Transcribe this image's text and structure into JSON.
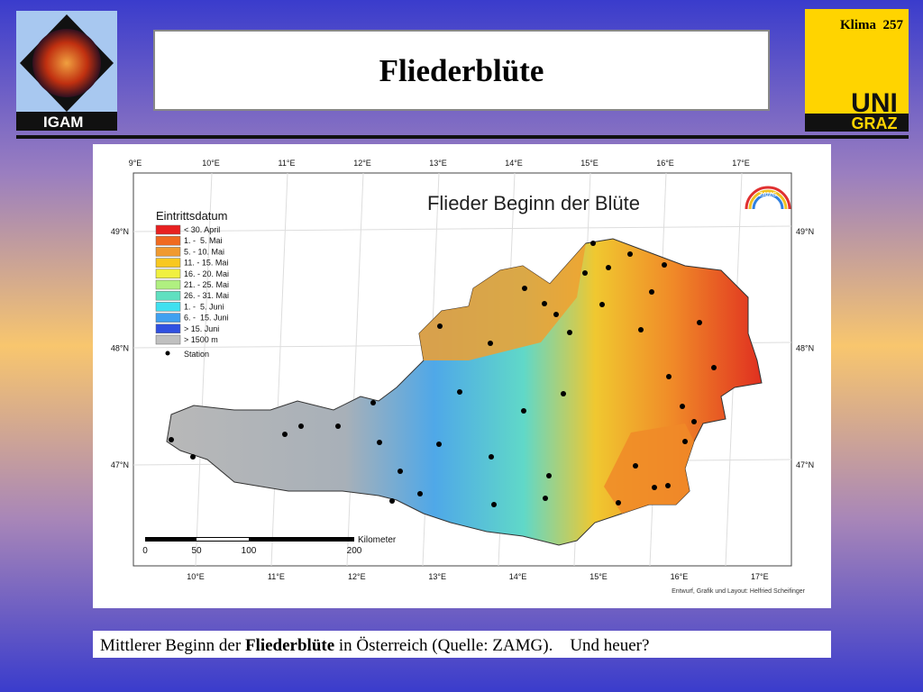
{
  "header": {
    "logo_text": "IGAM",
    "title": "Fliederblüte",
    "slide_label": "Klima  257",
    "university": [
      "UNI",
      "GRAZ"
    ]
  },
  "map": {
    "title": "Flieder Beginn der Blüte",
    "legend_title": "Eintrittsdatum",
    "legend": [
      "< 30. April",
      "1. -  5. Mai",
      "5. - 10. Mai",
      "11. - 15. Mai",
      "16. - 20. Mai",
      "21. - 25. Mai",
      "26. - 31. Mai",
      "1. -  5. Juni",
      "6. -  15. Juni",
      "> 15. Juni",
      "> 1500 m"
    ],
    "station_label": "Station",
    "lon_top": [
      "9°E",
      "10°E",
      "11°E",
      "12°E",
      "13°E",
      "14°E",
      "15°E",
      "16°E",
      "17°E"
    ],
    "lon_bottom": [
      "10°E",
      "11°E",
      "12°E",
      "13°E",
      "14°E",
      "15°E",
      "16°E",
      "17°E"
    ],
    "lat": [
      "49°N",
      "48°N",
      "47°N"
    ],
    "scale": {
      "labels": [
        "0",
        "50",
        "100",
        "200"
      ],
      "unit": "Kilometer"
    },
    "logo": "ZAMG",
    "credit": "Entwurf, Grafik und Layout: Helfried Scheifinger"
  },
  "caption": {
    "pre": "Mittlerer Beginn der ",
    "bold": "Fliederblüte",
    "post": " in Österreich (Quelle: ZAMG).    Und heuer?"
  }
}
